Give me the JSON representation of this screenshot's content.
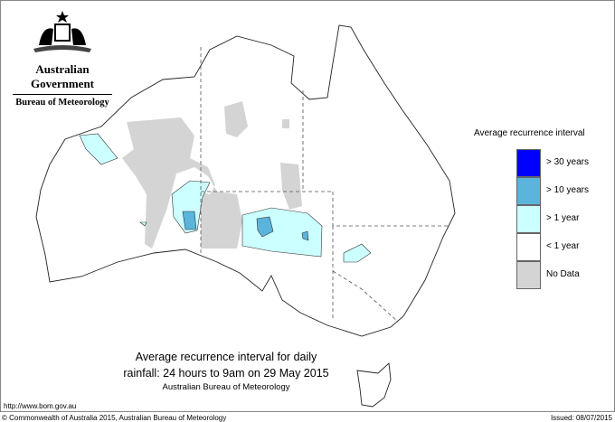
{
  "branding": {
    "government": "Australian Government",
    "agency": "Bureau of Meteorology",
    "logo": "commonwealth-coat-of-arms"
  },
  "legend": {
    "title": "Average recurrence interval",
    "items": [
      {
        "label": "> 30 years",
        "color": "#0000ff"
      },
      {
        "label": "> 10 years",
        "color": "#5ab4dc"
      },
      {
        "label": "> 1 year",
        "color": "#ccffff"
      },
      {
        "label": "< 1 year",
        "color": "#ffffff"
      },
      {
        "label": "No Data",
        "color": "#d4d4d4"
      }
    ]
  },
  "map": {
    "region": "Australia",
    "layers": [
      "state-borders",
      "recurrence-interval-shading"
    ]
  },
  "title": {
    "line1": "Average recurrence interval for daily",
    "line2": "rainfall: 24 hours to 9am on 29 May 2015",
    "line3": "Australian Bureau of Meteorology"
  },
  "footer": {
    "url": "http://www.bom.gov.au",
    "copyright": "© Commonwealth of Australia 2015, Australian Bureau of Meteorology",
    "issued": "Issued: 08/07/2015"
  }
}
